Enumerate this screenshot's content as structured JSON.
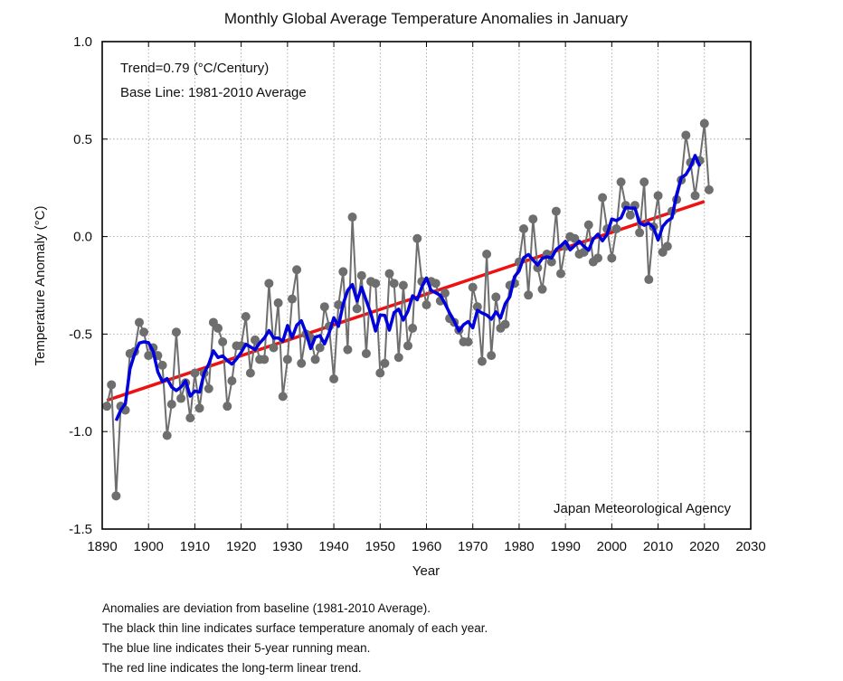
{
  "chart_data": {
    "type": "line",
    "title": "Monthly Global Average Temperature Anomalies in January",
    "xlabel": "Year",
    "ylabel": "Temperature Anomaly (°C)",
    "xlim": [
      1890,
      2030
    ],
    "ylim": [
      -1.5,
      1.0
    ],
    "x_ticks": [
      1890,
      1900,
      1910,
      1920,
      1930,
      1940,
      1950,
      1960,
      1970,
      1980,
      1990,
      2000,
      2010,
      2020,
      2030
    ],
    "x_tick_labels": [
      "1890",
      "1900",
      "1910",
      "1920",
      "1930",
      "1940",
      "1950",
      "1960",
      "1970",
      "1980",
      "1990",
      "2000",
      "2010",
      "2020",
      "2030"
    ],
    "y_ticks": [
      1.0,
      0.5,
      0.0,
      -0.5,
      -1.0,
      -1.5
    ],
    "y_tick_labels": [
      "1.0",
      "0.5",
      "0.0",
      "-0.5",
      "-1.0",
      "-1.5"
    ],
    "grid": true,
    "annotations": {
      "trend": "Trend=0.79 (°C/Century)",
      "baseline": "Base Line: 1981-2010 Average",
      "credit": "Japan Meteorological Agency"
    },
    "series": [
      {
        "name": "Annual anomaly",
        "color": "#6e6e6e",
        "x": [
          1891,
          1892,
          1893,
          1894,
          1895,
          1896,
          1897,
          1898,
          1899,
          1900,
          1901,
          1902,
          1903,
          1904,
          1905,
          1906,
          1907,
          1908,
          1909,
          1910,
          1911,
          1912,
          1913,
          1914,
          1915,
          1916,
          1917,
          1918,
          1919,
          1920,
          1921,
          1922,
          1923,
          1924,
          1925,
          1926,
          1927,
          1928,
          1929,
          1930,
          1931,
          1932,
          1933,
          1934,
          1935,
          1936,
          1937,
          1938,
          1939,
          1940,
          1941,
          1942,
          1943,
          1944,
          1945,
          1946,
          1947,
          1948,
          1949,
          1950,
          1951,
          1952,
          1953,
          1954,
          1955,
          1956,
          1957,
          1958,
          1959,
          1960,
          1961,
          1962,
          1963,
          1964,
          1965,
          1966,
          1967,
          1968,
          1969,
          1970,
          1971,
          1972,
          1973,
          1974,
          1975,
          1976,
          1977,
          1978,
          1979,
          1980,
          1981,
          1982,
          1983,
          1984,
          1985,
          1986,
          1987,
          1988,
          1989,
          1990,
          1991,
          1992,
          1993,
          1994,
          1995,
          1996,
          1997,
          1998,
          1999,
          2000,
          2001,
          2002,
          2003,
          2004,
          2005,
          2006,
          2007,
          2008,
          2009,
          2010,
          2011,
          2012,
          2013,
          2014,
          2015,
          2016,
          2017,
          2018,
          2019,
          2020,
          2021
        ],
        "values": [
          -0.87,
          -0.76,
          -1.33,
          -0.87,
          -0.89,
          -0.6,
          -0.59,
          -0.44,
          -0.49,
          -0.61,
          -0.57,
          -0.61,
          -0.66,
          -1.02,
          -0.86,
          -0.49,
          -0.83,
          -0.75,
          -0.93,
          -0.7,
          -0.88,
          -0.7,
          -0.78,
          -0.44,
          -0.47,
          -0.54,
          -0.87,
          -0.74,
          -0.56,
          -0.56,
          -0.41,
          -0.7,
          -0.53,
          -0.63,
          -0.63,
          -0.24,
          -0.57,
          -0.34,
          -0.82,
          -0.63,
          -0.32,
          -0.17,
          -0.65,
          -0.5,
          -0.52,
          -0.63,
          -0.57,
          -0.36,
          -0.46,
          -0.73,
          -0.35,
          -0.18,
          -0.58,
          0.1,
          -0.37,
          -0.2,
          -0.6,
          -0.23,
          -0.24,
          -0.7,
          -0.65,
          -0.19,
          -0.24,
          -0.62,
          -0.25,
          -0.56,
          -0.47,
          -0.01,
          -0.23,
          -0.35,
          -0.23,
          -0.24,
          -0.33,
          -0.29,
          -0.42,
          -0.44,
          -0.48,
          -0.54,
          -0.54,
          -0.26,
          -0.36,
          -0.64,
          -0.09,
          -0.61,
          -0.31,
          -0.47,
          -0.45,
          -0.25,
          -0.24,
          -0.13,
          0.04,
          -0.3,
          0.09,
          -0.16,
          -0.27,
          -0.09,
          -0.13,
          0.13,
          -0.19,
          -0.05,
          0.0,
          -0.01,
          -0.09,
          -0.08,
          0.06,
          -0.13,
          -0.11,
          0.2,
          0.04,
          -0.11,
          0.04,
          0.28,
          0.16,
          0.11,
          0.16,
          0.02,
          0.28,
          -0.22,
          0.05,
          0.21,
          -0.08,
          -0.05,
          0.13,
          0.19,
          0.29,
          0.52,
          0.38,
          0.21,
          0.39,
          0.58,
          0.24
        ]
      },
      {
        "name": "5-year running mean",
        "color": "#0000dd",
        "window": 5
      },
      {
        "name": "Long-term linear trend",
        "color": "#ee1111",
        "x": [
          1891,
          2020
        ],
        "values": [
          -0.84,
          0.18
        ]
      }
    ],
    "notes": [
      "Anomalies are deviation from baseline (1981-2010 Average).",
      "The black thin line indicates surface temperature anomaly of each year.",
      "The blue line indicates their 5-year running mean.",
      "The red line indicates the long-term linear trend."
    ]
  }
}
